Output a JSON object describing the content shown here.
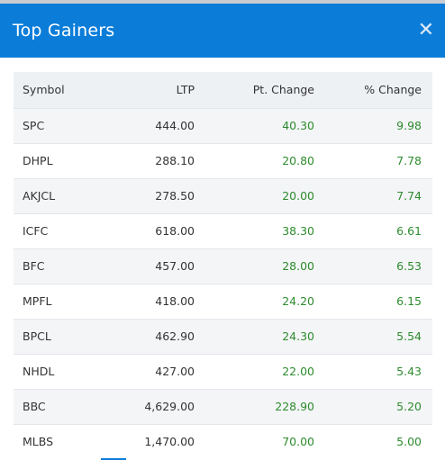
{
  "dialog": {
    "title": "Top Gainers",
    "close_glyph": "✕",
    "close_icon": "close-icon"
  },
  "table": {
    "columns": [
      "Symbol",
      "LTP",
      "Pt. Change",
      "% Change"
    ],
    "rows": [
      {
        "symbol": "SPC",
        "ltp": "444.00",
        "pt_change": "40.30",
        "pct_change": "9.98"
      },
      {
        "symbol": "DHPL",
        "ltp": "288.10",
        "pt_change": "20.80",
        "pct_change": "7.78"
      },
      {
        "symbol": "AKJCL",
        "ltp": "278.50",
        "pt_change": "20.00",
        "pct_change": "7.74"
      },
      {
        "symbol": "ICFC",
        "ltp": "618.00",
        "pt_change": "38.30",
        "pct_change": "6.61"
      },
      {
        "symbol": "BFC",
        "ltp": "457.00",
        "pt_change": "28.00",
        "pct_change": "6.53"
      },
      {
        "symbol": "MPFL",
        "ltp": "418.00",
        "pt_change": "24.20",
        "pct_change": "6.15"
      },
      {
        "symbol": "BPCL",
        "ltp": "462.90",
        "pt_change": "24.30",
        "pct_change": "5.54"
      },
      {
        "symbol": "NHDL",
        "ltp": "427.00",
        "pt_change": "22.00",
        "pct_change": "5.43"
      },
      {
        "symbol": "BBC",
        "ltp": "4,629.00",
        "pt_change": "228.90",
        "pct_change": "5.20"
      },
      {
        "symbol": "MLBS",
        "ltp": "1,470.00",
        "pt_change": "70.00",
        "pct_change": "5.00"
      }
    ]
  },
  "colors": {
    "header_bg": "#0b7dd9",
    "gain_green": "#2e8b2e"
  }
}
